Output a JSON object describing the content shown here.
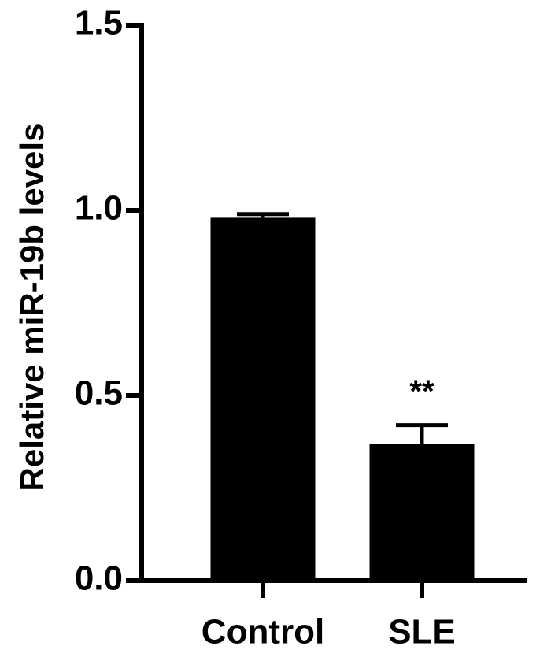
{
  "chart_data": {
    "type": "bar",
    "ylabel": "Relative miR-19b levels",
    "categories": [
      "Control",
      "SLE"
    ],
    "values": [
      0.98,
      0.37
    ],
    "errors": [
      0.01,
      0.05
    ],
    "color": "#000000",
    "annotations": [
      "**"
    ],
    "ylim": [
      0,
      1.5
    ],
    "yticks": [
      {
        "value": 0,
        "label": "0.0"
      },
      0.5,
      {
        "value": 1,
        "label": "1.0"
      },
      1.5
    ]
  }
}
